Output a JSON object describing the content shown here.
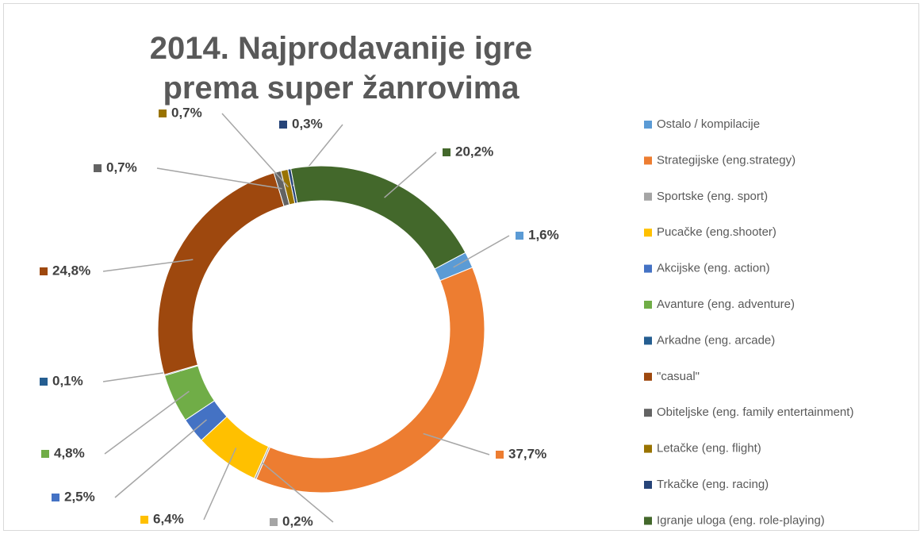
{
  "chart_data": {
    "type": "donut",
    "title": "2014. Najprodavanije igre prema super žanrovima",
    "categories": [
      "Ostalo / kompilacije",
      "Strategijske (eng.strategy)",
      "Sportske (eng. sport)",
      "Pucačke (eng.shooter)",
      "Akcijske (eng. action)",
      "Avanture (eng. adventure)",
      "Arkadne (eng. arcade)",
      "\"casual\"",
      "Obiteljske (eng. family entertainment)",
      "Letačke (eng. flight)",
      "Trkačke (eng. racing)",
      "Igranje uloga (eng. role-playing)"
    ],
    "values": [
      1.6,
      37.7,
      0.2,
      6.4,
      2.5,
      4.8,
      0.1,
      24.8,
      0.7,
      0.7,
      0.3,
      20.2
    ],
    "value_labels": [
      "1,6%",
      "37,7%",
      "0,2%",
      "6,4%",
      "2,5%",
      "4,8%",
      "0,1%",
      "24,8%",
      "0,7%",
      "0,7%",
      "0,3%",
      "20,2%"
    ],
    "colors": [
      "#5b9bd5",
      "#ed7d31",
      "#a5a5a5",
      "#ffc000",
      "#4472c4",
      "#70ad47",
      "#255e91",
      "#9e480e",
      "#636363",
      "#997300",
      "#264478",
      "#43682b"
    ],
    "first_slice_angle": 62,
    "legend": "right"
  }
}
